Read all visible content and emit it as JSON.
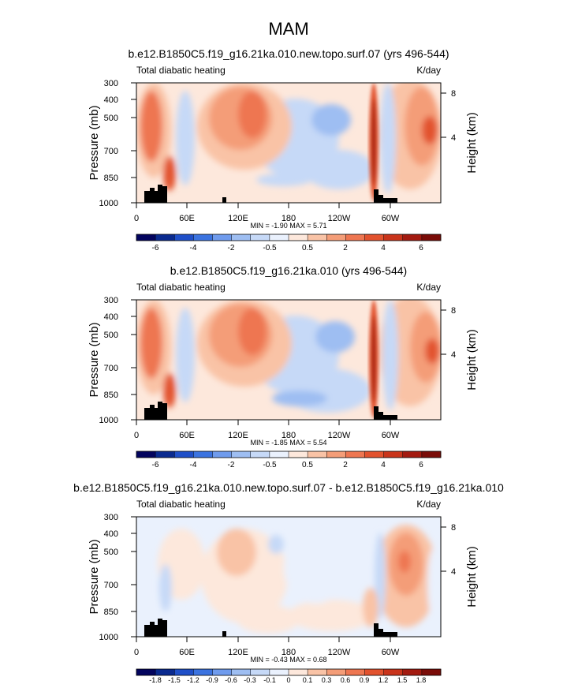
{
  "figure": {
    "title": "MAM"
  },
  "chart_data": [
    {
      "type": "heatmap",
      "title": "b.e12.B1850C5.f19_g16.21ka.010.new.topo.surf.07 (yrs 496-544)",
      "variable": "Total diabatic heating",
      "units": "K/day",
      "ylabel": "Pressure (mb)",
      "ylabel_right": "Height (km)",
      "x_ticks": [
        "0",
        "60E",
        "120E",
        "180",
        "120W",
        "60W"
      ],
      "y_ticks": [
        "300",
        "400",
        "500",
        "700",
        "850",
        "1000"
      ],
      "height_ticks": [
        "8",
        "4"
      ],
      "stats": "MIN = -1.90  MAX =  5.71",
      "colorbar_labels": [
        "-6",
        "-4",
        "-2",
        "-0.5",
        "0.5",
        "2",
        "4",
        "6"
      ],
      "colorbar_colors": [
        "#03045e",
        "#0a2a8f",
        "#1f4fc8",
        "#3b73e0",
        "#6f9bed",
        "#9ebef2",
        "#c6d9f7",
        "#eaf1fd",
        "#fde8dc",
        "#f9c3a6",
        "#f49d78",
        "#ee7651",
        "#e2522e",
        "#c9341b",
        "#a31a10",
        "#7a0c08"
      ]
    },
    {
      "type": "heatmap",
      "title": "b.e12.B1850C5.f19_g16.21ka.010 (yrs 496-544)",
      "variable": "Total diabatic heating",
      "units": "K/day",
      "ylabel": "Pressure (mb)",
      "ylabel_right": "Height (km)",
      "x_ticks": [
        "0",
        "60E",
        "120E",
        "180",
        "120W",
        "60W"
      ],
      "y_ticks": [
        "300",
        "400",
        "500",
        "700",
        "850",
        "1000"
      ],
      "height_ticks": [
        "8",
        "4"
      ],
      "stats": "MIN = -1.85  MAX =  5.54",
      "colorbar_labels": [
        "-6",
        "-4",
        "-2",
        "-0.5",
        "0.5",
        "2",
        "4",
        "6"
      ],
      "colorbar_colors": [
        "#03045e",
        "#0a2a8f",
        "#1f4fc8",
        "#3b73e0",
        "#6f9bed",
        "#9ebef2",
        "#c6d9f7",
        "#eaf1fd",
        "#fde8dc",
        "#f9c3a6",
        "#f49d78",
        "#ee7651",
        "#e2522e",
        "#c9341b",
        "#a31a10",
        "#7a0c08"
      ]
    },
    {
      "type": "heatmap",
      "title": "b.e12.B1850C5.f19_g16.21ka.010.new.topo.surf.07 - b.e12.B1850C5.f19_g16.21ka.010",
      "variable": "Total diabatic heating",
      "units": "K/day",
      "ylabel": "Pressure (mb)",
      "ylabel_right": "Height (km)",
      "x_ticks": [
        "0",
        "60E",
        "120E",
        "180",
        "120W",
        "60W"
      ],
      "y_ticks": [
        "300",
        "400",
        "500",
        "700",
        "850",
        "1000"
      ],
      "height_ticks": [
        "8",
        "4"
      ],
      "stats": "MIN = -0.43  MAX =  0.68",
      "colorbar_labels": [
        "-1.8",
        "-1.5",
        "-1.2",
        "-0.9",
        "-0.6",
        "-0.3",
        "-0.1",
        "0",
        "0.1",
        "0.3",
        "0.6",
        "0.9",
        "1.2",
        "1.5",
        "1.8"
      ],
      "colorbar_colors": [
        "#03045e",
        "#0a2a8f",
        "#1f4fc8",
        "#3b73e0",
        "#6f9bed",
        "#9ebef2",
        "#c6d9f7",
        "#eaf1fd",
        "#fde8dc",
        "#f9c3a6",
        "#f49d78",
        "#ee7651",
        "#e2522e",
        "#c9341b",
        "#a31a10",
        "#7a0c08"
      ]
    }
  ]
}
